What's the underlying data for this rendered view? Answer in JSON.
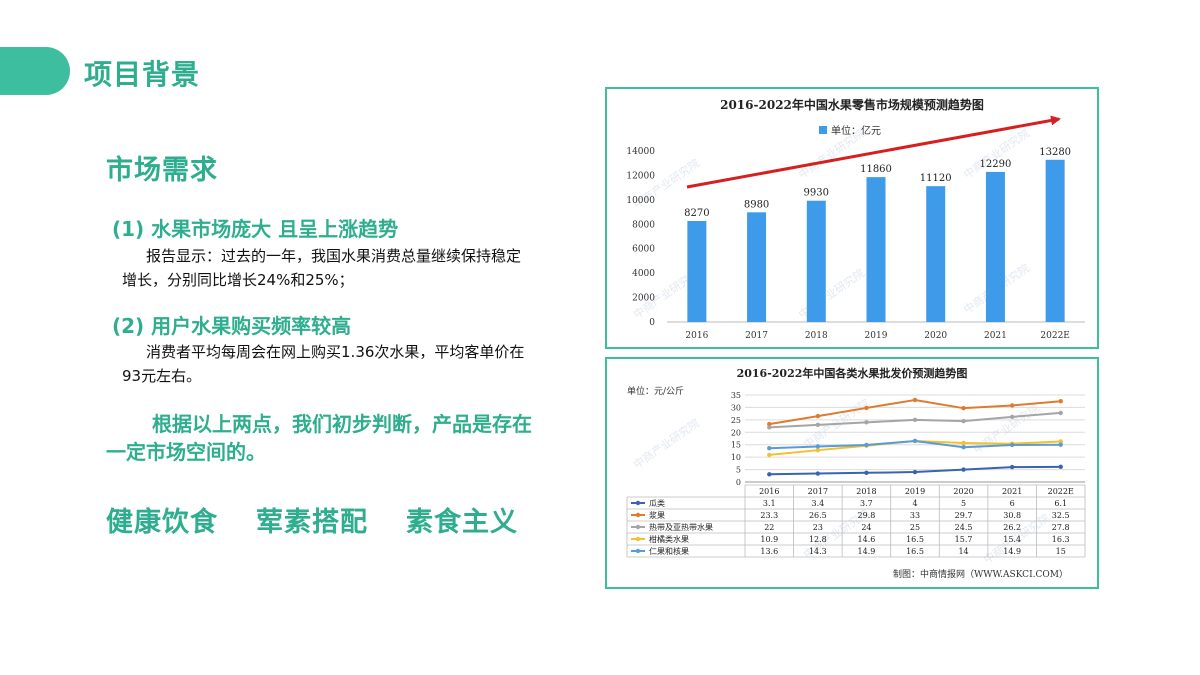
{
  "header": {
    "title": "项目背景"
  },
  "left": {
    "section_title": "市场需求",
    "point1_title": "(1) 水果市场庞大 且呈上涨趋势",
    "point1_body": "报告显示：过去的一年，我国水果消费总量继续保持稳定增长，分别同比增长24%和25%；",
    "point2_title": "(2) 用户水果购买频率较高",
    "point2_body": "消费者平均每周会在网上购买1.36次水果，平均客单价在93元左右。",
    "conclusion": "根据以上两点，我们初步判断，产品是存在一定市场空间的。",
    "keywords": [
      "健康饮食",
      "荤素搭配",
      "素食主义"
    ]
  },
  "colors": {
    "accent": "#2fae8f",
    "panel_border": "#3dbf9f",
    "bar": "#3d9be9",
    "arrow": "#d61f1f"
  },
  "watermark": "中商产业研究院",
  "chart_data": [
    {
      "type": "bar",
      "title": "2016-2022年中国水果零售市场规模预测趋势图",
      "legend": "单位：亿元",
      "legend_position": "top",
      "categories": [
        "2016",
        "2017",
        "2018",
        "2019",
        "2020",
        "2021",
        "2022E"
      ],
      "values": [
        8270,
        8980,
        9930,
        11860,
        11120,
        12290,
        13280
      ],
      "ylim": [
        0,
        14000
      ],
      "yticks": [
        0,
        2000,
        4000,
        6000,
        8000,
        10000,
        12000,
        14000
      ],
      "grid": false,
      "annotation": "red upward trend arrow"
    },
    {
      "type": "line",
      "title": "2016-2022年中国各类水果批发价预测趋势图",
      "unit_label": "单位：元/公斤",
      "categories": [
        "2016",
        "2017",
        "2018",
        "2019",
        "2020",
        "2021",
        "2022E"
      ],
      "ylim": [
        0,
        35
      ],
      "yticks": [
        0,
        5,
        10,
        15,
        20,
        25,
        30,
        35
      ],
      "grid": true,
      "data_table": true,
      "series": [
        {
          "name": "瓜类",
          "color": "#3a64b0",
          "values": [
            3.1,
            3.4,
            3.7,
            4,
            5,
            6,
            6.1
          ]
        },
        {
          "name": "浆果",
          "color": "#e07a2d",
          "values": [
            23.3,
            26.5,
            29.8,
            33,
            29.7,
            30.8,
            32.5
          ]
        },
        {
          "name": "热带及亚热带水果",
          "color": "#a5a5a5",
          "values": [
            22,
            23,
            24,
            25,
            24.5,
            26.2,
            27.8
          ]
        },
        {
          "name": "柑橘类水果",
          "color": "#f2c12e",
          "values": [
            10.9,
            12.8,
            14.6,
            16.5,
            15.7,
            15.4,
            16.3
          ]
        },
        {
          "name": "仁果和核果",
          "color": "#5b9bd5",
          "values": [
            13.6,
            14.3,
            14.9,
            16.5,
            14,
            14.9,
            15
          ]
        }
      ],
      "source": "制图：中商情报网（WWW.ASKCI.COM）"
    }
  ]
}
